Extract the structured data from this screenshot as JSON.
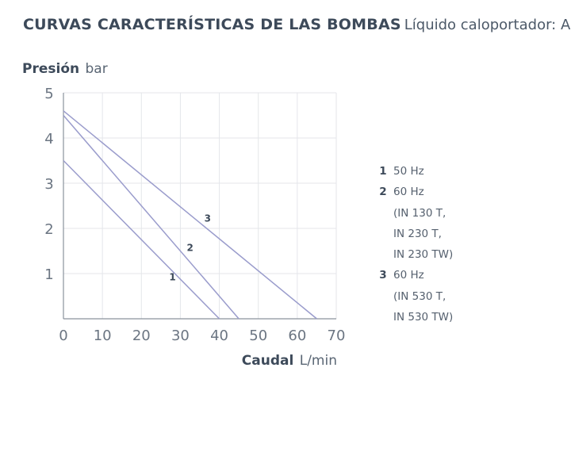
{
  "title": {
    "main": "CURVAS CARACTERÍSTICAS DE LAS BOMBAS",
    "sub": "Líquido caloportador: Agua"
  },
  "axes": {
    "y_label": "Presión",
    "y_unit": "bar",
    "x_label": "Caudal",
    "x_unit": "L/min"
  },
  "legend": [
    {
      "num": "1",
      "lines": [
        "50 Hz"
      ]
    },
    {
      "num": "2",
      "lines": [
        "60 Hz",
        "(IN 130 T,",
        "IN 230 T,",
        "IN 230 TW)"
      ]
    },
    {
      "num": "3",
      "lines": [
        "60 Hz",
        "(IN 530 T,",
        "IN 530 TW)"
      ]
    }
  ],
  "chart_data": {
    "type": "line",
    "title": "CURVAS CARACTERÍSTICAS DE LAS BOMBAS",
    "subtitle": "Líquido caloportador: Agua",
    "xlabel": "Caudal L/min",
    "ylabel": "Presión bar",
    "xlim": [
      0,
      70
    ],
    "ylim": [
      0,
      5
    ],
    "xticks": [
      0,
      10,
      20,
      30,
      40,
      50,
      60,
      70
    ],
    "yticks": [
      1,
      2,
      3,
      4,
      5
    ],
    "grid": true,
    "legend_position": "right",
    "line_color": "#9a9ccc",
    "series": [
      {
        "name": "1",
        "x": [
          0,
          40
        ],
        "y": [
          3.5,
          0
        ],
        "label_at": [
          28,
          0.85
        ]
      },
      {
        "name": "2",
        "x": [
          0,
          45
        ],
        "y": [
          4.5,
          0
        ],
        "label_at": [
          32.5,
          1.5
        ]
      },
      {
        "name": "3",
        "x": [
          0,
          65
        ],
        "y": [
          4.6,
          0
        ],
        "label_at": [
          37,
          2.15
        ]
      }
    ]
  }
}
